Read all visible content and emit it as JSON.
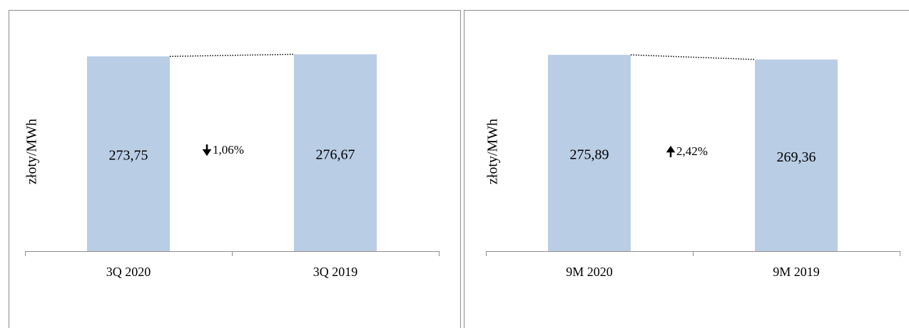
{
  "chart_data": [
    {
      "type": "bar",
      "y_label": "złoty/MWh",
      "categories": [
        "3Q 2020",
        "3Q 2019"
      ],
      "values": [
        273.75,
        276.67
      ],
      "value_labels": [
        "273,75",
        "276,67"
      ],
      "annotation": "1,06%",
      "color": "#b9cde5",
      "ylim": [
        0,
        300
      ]
    },
    {
      "type": "bar",
      "y_label": "złoty/MWh",
      "categories": [
        "9M 2020",
        "9M 2019"
      ],
      "values": [
        275.89,
        269.36
      ],
      "value_labels": [
        "275,89",
        "269,36"
      ],
      "annotation": "2,42%",
      "color": "#b9cde5",
      "ylim": [
        0,
        300
      ]
    }
  ]
}
